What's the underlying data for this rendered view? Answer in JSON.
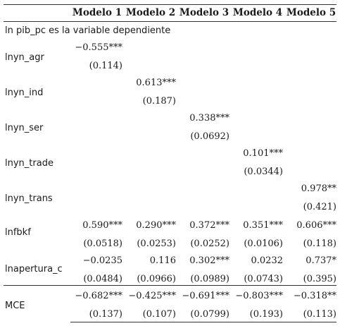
{
  "headers": [
    "Modelo 1",
    "Modelo 2",
    "Modelo 3",
    "Modelo 4",
    "Modelo 5"
  ],
  "note": "ln pib_pc es la variable dependiente",
  "rows": [
    {
      "label": "lnyn_agr",
      "coef": [
        "−0.555***",
        "",
        "",
        "",
        ""
      ],
      "se": [
        "(0.114)",
        "",
        "",
        "",
        ""
      ]
    },
    {
      "label": "lnyn_ind",
      "coef": [
        "",
        "0.613***",
        "",
        "",
        ""
      ],
      "se": [
        "",
        "(0.187)",
        "",
        "",
        ""
      ]
    },
    {
      "label": "lnyn_ser",
      "coef": [
        "",
        "",
        "0.338***",
        "",
        ""
      ],
      "se": [
        "",
        "",
        "(0.0692)",
        "",
        ""
      ]
    },
    {
      "label": "lnyn_trade",
      "coef": [
        "",
        "",
        "",
        "0.101***",
        ""
      ],
      "se": [
        "",
        "",
        "",
        "(0.0344)",
        ""
      ]
    },
    {
      "label": "lnyn_trans",
      "coef": [
        "",
        "",
        "",
        "",
        "0.978**"
      ],
      "se": [
        "",
        "",
        "",
        "",
        "(0.421)"
      ]
    },
    {
      "label": "lnfbkf",
      "coef": [
        "0.590***",
        "0.290***",
        "0.372***",
        "0.351***",
        "0.606***"
      ],
      "se": [
        "(0.0518)",
        "(0.0253)",
        "(0.0252)",
        "(0.0106)",
        "(0.118)"
      ]
    },
    {
      "label": "lnapertura_c",
      "coef": [
        "−0.0235",
        "0.116",
        "0.302***",
        "0.0232",
        "0.737*"
      ],
      "se": [
        "(0.0484)",
        "(0.0966)",
        "(0.0989)",
        "(0.0743)",
        "(0.395)"
      ]
    },
    {
      "label": "MCE",
      "coef": [
        "−0.682***",
        "−0.425***",
        "−0.691***",
        "−0.803***",
        "−0.318**"
      ],
      "se": [
        "(0.137)",
        "(0.107)",
        "(0.0799)",
        "(0.193)",
        "(0.113)"
      ]
    }
  ]
}
